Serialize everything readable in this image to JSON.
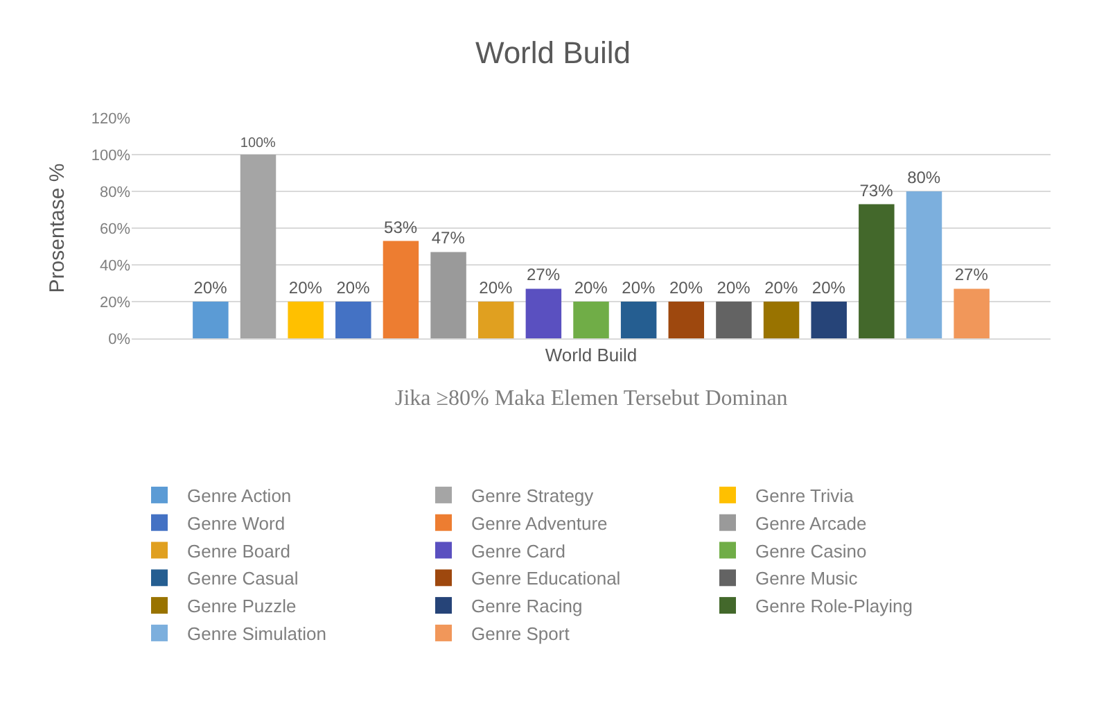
{
  "chart_data": {
    "type": "bar",
    "title": "World Build",
    "ylabel": "Prosentase %",
    "categories": [
      "World Build"
    ],
    "annotations": [
      "Jika ≥80% Maka Elemen Tersebut Dominan"
    ],
    "ylim": [
      0,
      120
    ],
    "yticks": [
      {
        "value": 0,
        "label": "0%"
      },
      {
        "value": 20,
        "label": "20%"
      },
      {
        "value": 40,
        "label": "40%"
      },
      {
        "value": 60,
        "label": "60%"
      },
      {
        "value": 80,
        "label": "80%"
      },
      {
        "value": 100,
        "label": "100%"
      },
      {
        "value": 120,
        "label": "120%"
      }
    ],
    "grid": "y",
    "legend": "bottom",
    "series": [
      {
        "name": "Genre Action",
        "color": "#5b9bd5",
        "values": [
          20
        ],
        "value_labels": [
          "20%"
        ]
      },
      {
        "name": "Genre Strategy",
        "color": "#a5a5a5",
        "values": [
          100
        ],
        "value_labels": [
          "100%"
        ]
      },
      {
        "name": "Genre Trivia",
        "color": "#ffc000",
        "values": [
          20
        ],
        "value_labels": [
          "20%"
        ]
      },
      {
        "name": "Genre Word",
        "color": "#4472c4",
        "values": [
          20
        ],
        "value_labels": [
          "20%"
        ]
      },
      {
        "name": "Genre Adventure",
        "color": "#ed7d31",
        "values": [
          53
        ],
        "value_labels": [
          "53%"
        ]
      },
      {
        "name": "Genre Arcade",
        "color": "#9a9a9a",
        "values": [
          47
        ],
        "value_labels": [
          "47%"
        ]
      },
      {
        "name": "Genre Board",
        "color": "#e0a020",
        "values": [
          20
        ],
        "value_labels": [
          "20%"
        ]
      },
      {
        "name": "Genre Card",
        "color": "#5a50c0",
        "values": [
          27
        ],
        "value_labels": [
          "27%"
        ]
      },
      {
        "name": "Genre Casino",
        "color": "#70ad47",
        "values": [
          20
        ],
        "value_labels": [
          "20%"
        ]
      },
      {
        "name": "Genre Casual",
        "color": "#255e91",
        "values": [
          20
        ],
        "value_labels": [
          "20%"
        ]
      },
      {
        "name": "Genre Educational",
        "color": "#9e480e",
        "values": [
          20
        ],
        "value_labels": [
          "20%"
        ]
      },
      {
        "name": "Genre Music",
        "color": "#636363",
        "values": [
          20
        ],
        "value_labels": [
          "20%"
        ]
      },
      {
        "name": "Genre Puzzle",
        "color": "#997300",
        "values": [
          20
        ],
        "value_labels": [
          "20%"
        ]
      },
      {
        "name": "Genre Racing",
        "color": "#264478",
        "values": [
          20
        ],
        "value_labels": [
          "20%"
        ]
      },
      {
        "name": "Genre Role-Playing",
        "color": "#43682b",
        "values": [
          73
        ],
        "value_labels": [
          "73%"
        ]
      },
      {
        "name": "Genre Simulation",
        "color": "#7cafdd",
        "values": [
          80
        ],
        "value_labels": [
          "80%"
        ]
      },
      {
        "name": "Genre Sport",
        "color": "#f1975a",
        "values": [
          27
        ],
        "value_labels": [
          "27%"
        ]
      }
    ]
  }
}
